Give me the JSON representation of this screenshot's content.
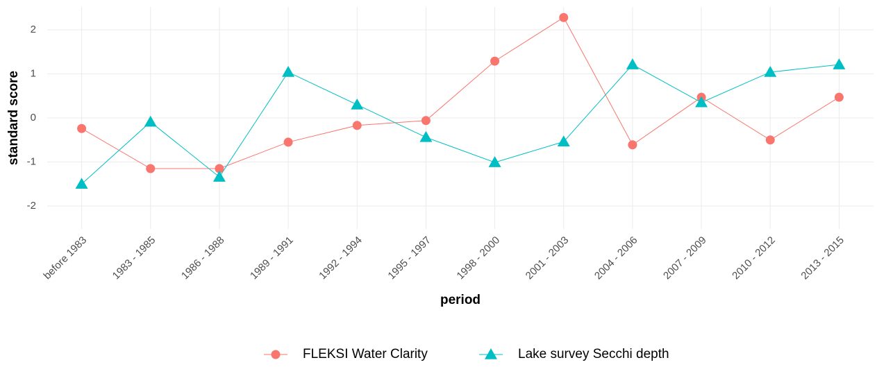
{
  "chart_data": {
    "type": "line",
    "x_label": "period",
    "y_label": "standard score",
    "categories": [
      "before 1983",
      "1983 - 1985",
      "1986 - 1988",
      "1989 - 1991",
      "1992 - 1994",
      "1995 - 1997",
      "1998 - 2000",
      "2001 - 2003",
      "2004 - 2006",
      "2007 - 2009",
      "2010 - 2012",
      "2013 - 2015"
    ],
    "series": [
      {
        "name": "FLEKSI Water Clarity",
        "color": "#F8766D",
        "marker": "circle",
        "values": [
          -0.24,
          -1.15,
          -1.15,
          -0.55,
          -0.17,
          -0.06,
          1.29,
          2.28,
          -0.61,
          0.47,
          -0.5,
          0.47
        ]
      },
      {
        "name": "Lake survey Secchi depth",
        "color": "#00BFC4",
        "marker": "triangle",
        "values": [
          -1.5,
          -0.09,
          -1.34,
          1.04,
          0.3,
          -0.44,
          -1.01,
          -0.54,
          1.21,
          0.35,
          1.04,
          1.21
        ]
      }
    ],
    "ylim": [
      -2.52,
      2.52
    ],
    "yticks": [
      -2,
      -1,
      0,
      1,
      2
    ],
    "grid": true,
    "legend": "bottom"
  }
}
